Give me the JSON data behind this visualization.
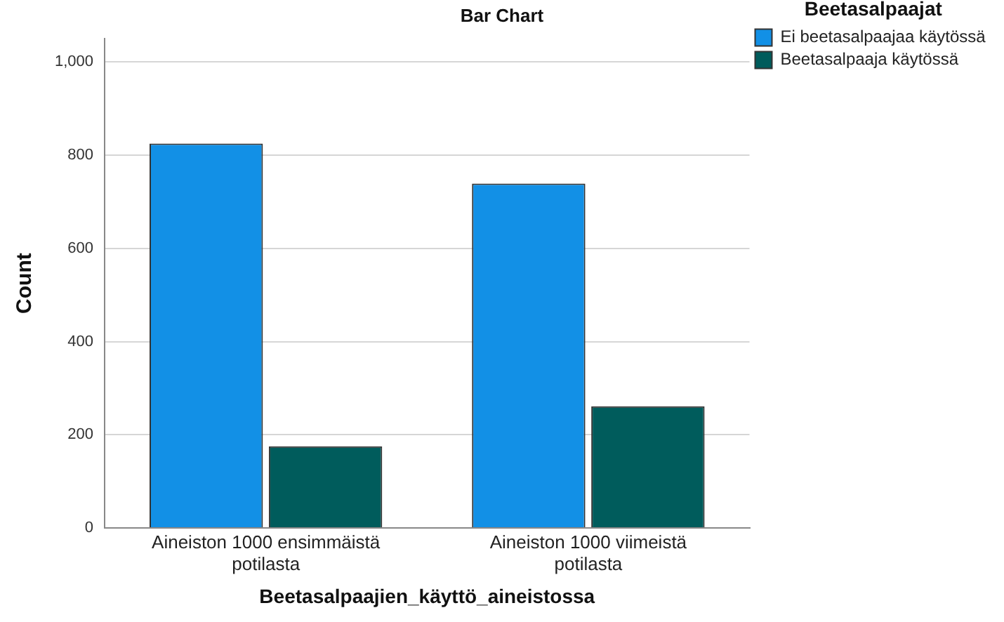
{
  "chart_data": {
    "type": "bar",
    "title": "Bar Chart",
    "xlabel": "Beetasalpaajien_käyttö_aineistossa",
    "ylabel": "Count",
    "legend_title": "Beetasalpaajat",
    "categories": [
      "Aineiston 1000 ensimmäistä potilasta",
      "Aineiston 1000 viimeistä potilasta"
    ],
    "series": [
      {
        "name": "Ei beetasalpaajaa käytössä",
        "color": "#1290e6",
        "values": [
          825,
          739
        ]
      },
      {
        "name": "Beetasalpaaja käytössä",
        "color": "#005c5c",
        "values": [
          175,
          261
        ]
      }
    ],
    "ylim": [
      0,
      1050
    ],
    "yticks": [
      0,
      200,
      400,
      600,
      800,
      {
        "value": 1000,
        "label": "1,000"
      }
    ],
    "grid": "y",
    "legend": "top right"
  }
}
